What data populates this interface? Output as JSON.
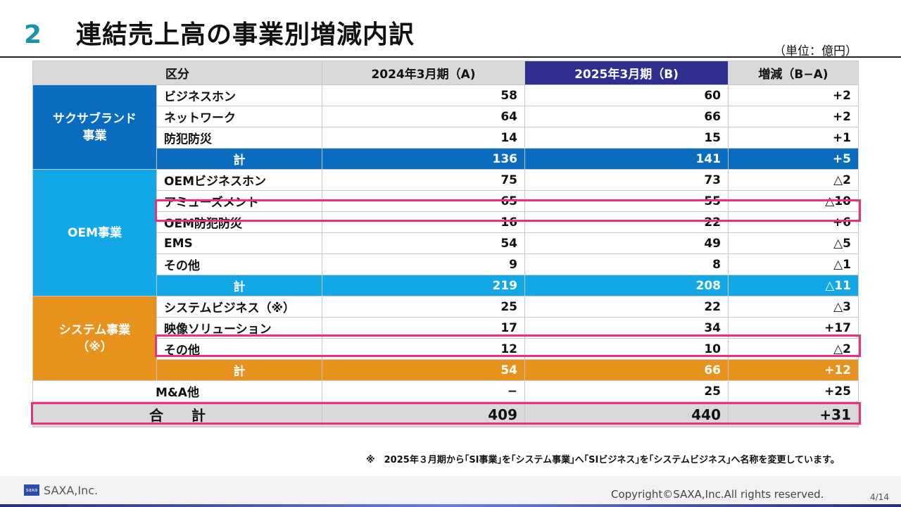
{
  "header": {
    "number": "2",
    "title": "連結売上高の事業別増減内訳",
    "unit": "（単位：億円）"
  },
  "table": {
    "headers": [
      "区分",
      "2024年3月期（A)",
      "2025年3月期（B)",
      "増減（B−A)"
    ],
    "groups": [
      {
        "category": "サクサブランド\n事業",
        "rows": [
          {
            "label": "ビジネスホン",
            "a": "58",
            "b": "60",
            "diff": "+2"
          },
          {
            "label": "ネットワーク",
            "a": "64",
            "b": "66",
            "diff": "+2"
          },
          {
            "label": "防犯防災",
            "a": "14",
            "b": "15",
            "diff": "+1"
          }
        ],
        "subtotal": {
          "label": "計",
          "a": "136",
          "b": "141",
          "diff": "+5"
        }
      },
      {
        "category": "OEM事業",
        "rows": [
          {
            "label": "OEMビジネスホン",
            "a": "75",
            "b": "73",
            "diff": "△2"
          },
          {
            "label": "アミューズメント",
            "a": "65",
            "b": "55",
            "diff": "△10"
          },
          {
            "label": "OEM防犯防災",
            "a": "16",
            "b": "22",
            "diff": "+6"
          },
          {
            "label": "EMS",
            "a": "54",
            "b": "49",
            "diff": "△5"
          },
          {
            "label": "その他",
            "a": "9",
            "b": "8",
            "diff": "△1"
          }
        ],
        "subtotal": {
          "label": "計",
          "a": "219",
          "b": "208",
          "diff": "△11"
        }
      },
      {
        "category": "システム事業\n（※）",
        "rows": [
          {
            "label": "システムビジネス（※）",
            "a": "25",
            "b": "22",
            "diff": "△3"
          },
          {
            "label": "映像ソリューション",
            "a": "17",
            "b": "34",
            "diff": "+17"
          },
          {
            "label": "その他",
            "a": "12",
            "b": "10",
            "diff": "△2"
          }
        ],
        "subtotal": {
          "label": "計",
          "a": "54",
          "b": "66",
          "diff": "+12"
        }
      }
    ],
    "ma": {
      "label": "M&A他",
      "a": "−",
      "b": "25",
      "diff": "+25"
    },
    "total": {
      "label": "合　　計",
      "a": "409",
      "b": "440",
      "diff": "+31"
    }
  },
  "note": "※　2025年３月期から｢SI事業｣を｢システム事業｣へ｢SIビジネス｣を｢システムビジネス｣へ名称を変更しています。",
  "footer": {
    "logo_mark": "saxa",
    "company": "SAXA,Inc.",
    "copyright": "Copyright©SAXA,Inc.All rights reserved.",
    "page": "4/14"
  },
  "colors": {
    "title_number": "#1a94a6",
    "brand_blue": "#0a6cbf",
    "oem_cyan": "#12a8e8",
    "system_orange": "#e8921e",
    "header_highlight": "#2f2f8f",
    "highlight_frame": "#e6337e"
  }
}
